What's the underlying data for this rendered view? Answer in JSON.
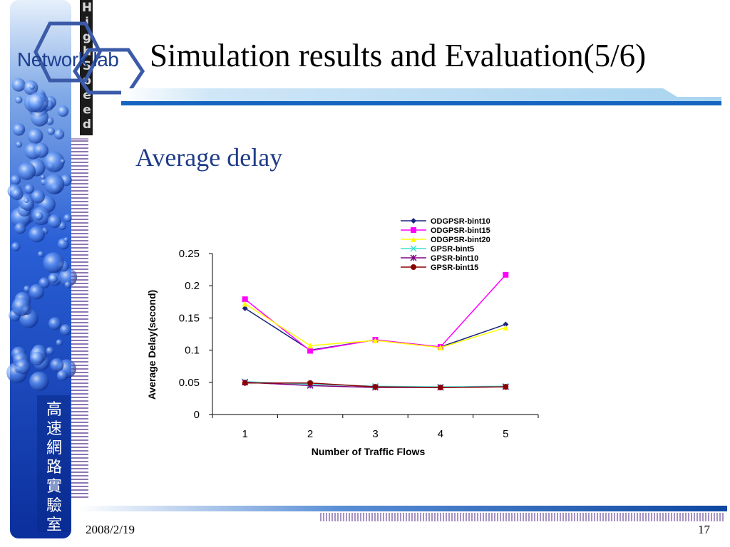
{
  "slide": {
    "title": "Simulation results and Evaluation(5/6)",
    "subtitle": "Average delay",
    "date": "2008/2/19",
    "page": "17"
  },
  "branding": {
    "logo_text": "Network lab",
    "vertical_text": "High Speed",
    "lab_name_chars": [
      "高",
      "速",
      "網",
      "路",
      "實",
      "驗",
      "室"
    ]
  },
  "colors": {
    "accent": "#1e3f8f",
    "bar_blue": "#1565c0",
    "bar_light": "#b3d9f2"
  },
  "chart_data": {
    "type": "line",
    "xlabel": "Number of Traffic Flows",
    "ylabel": "Average Delay(second)",
    "x": [
      1,
      2,
      3,
      4,
      5
    ],
    "ylim": [
      0,
      0.25
    ],
    "yticks": [
      0,
      0.05,
      0.1,
      0.15,
      0.2,
      0.25
    ],
    "ytick_labels": [
      "0",
      "0.05",
      "0.1",
      "0.15",
      "0.2",
      "0.25"
    ],
    "xtick_labels": [
      "1",
      "2",
      "3",
      "4",
      "5"
    ],
    "legend_position": "top",
    "series": [
      {
        "name": "ODGPSR-bint10",
        "values": [
          0.165,
          0.1,
          0.116,
          0.105,
          0.14
        ],
        "color": "#1a237e",
        "marker": "diamond"
      },
      {
        "name": "ODGPSR-bint15",
        "values": [
          0.179,
          0.099,
          0.116,
          0.105,
          0.217
        ],
        "color": "#ff00ff",
        "marker": "square"
      },
      {
        "name": "ODGPSR-bint20",
        "values": [
          0.172,
          0.107,
          0.115,
          0.104,
          0.135
        ],
        "color": "#ffff00",
        "marker": "triangle"
      },
      {
        "name": "GPSR-bint5",
        "values": [
          0.051,
          0.047,
          0.044,
          0.043,
          0.044
        ],
        "color": "#40e0d0",
        "marker": "x"
      },
      {
        "name": "GPSR-bint10",
        "values": [
          0.05,
          0.045,
          0.042,
          0.042,
          0.043
        ],
        "color": "#800080",
        "marker": "star"
      },
      {
        "name": "GPSR-bint15",
        "values": [
          0.049,
          0.049,
          0.043,
          0.042,
          0.043
        ],
        "color": "#8b0000",
        "marker": "circle"
      }
    ]
  }
}
